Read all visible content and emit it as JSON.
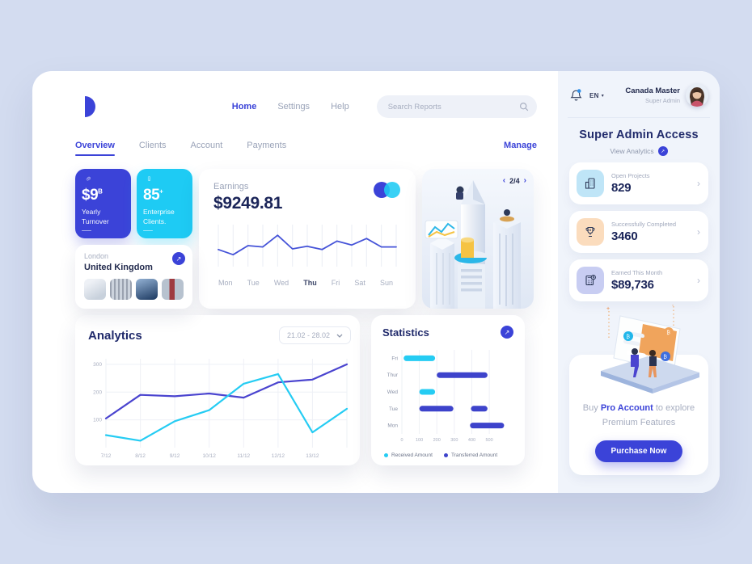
{
  "colors": {
    "primary": "#3b43d8",
    "cyan": "#1ecbf4",
    "navy": "#1b2559",
    "gray": "#9aa3b8",
    "bg": "#d3dcf0",
    "sidebar_bg": "#f0f4fb"
  },
  "nav": {
    "links": {
      "home": "Home",
      "settings": "Settings",
      "help": "Help"
    },
    "active": "Home",
    "search_placeholder": "Search Reports"
  },
  "tabs": {
    "items": [
      "Overview",
      "Clients",
      "Account",
      "Payments"
    ],
    "active": "Overview",
    "action_label": "Manage"
  },
  "kpis": [
    {
      "value": "$9",
      "suffix": "B",
      "label": "Yearly Turnover"
    },
    {
      "value": "85",
      "suffix": "+",
      "label": "Enterprise Clients."
    }
  ],
  "location": {
    "city": "London",
    "country": "United Kingdom"
  },
  "earnings": {
    "title": "Earnings",
    "amount": "$9249.81",
    "days": [
      "Mon",
      "Tue",
      "Wed",
      "Thu",
      "Fri",
      "Sat",
      "Sun"
    ],
    "active_day": "Thu"
  },
  "carousel": {
    "prev": "‹",
    "page_indicator": "2/4",
    "next": "›"
  },
  "analytics": {
    "title": "Analytics",
    "date_range": "21.02 - 28.02"
  },
  "statistics": {
    "title": "Statistics",
    "legend": [
      {
        "label": "Received Amount",
        "color": "#25ccf3"
      },
      {
        "label": "Transferred Amount",
        "color": "#3d43cb"
      }
    ]
  },
  "sidebar": {
    "language": "EN",
    "user": {
      "name": "Canada Master",
      "role": "Super Admin"
    },
    "heading": "Super Admin Access",
    "subheading": "View Analytics",
    "stats": [
      {
        "label": "Open Projects",
        "value": "829",
        "icon": "buildings-icon"
      },
      {
        "label": "Successfully Completed",
        "value": "3460",
        "icon": "trophy-icon"
      },
      {
        "label": "Earned This Month",
        "value": "$89,736",
        "icon": "calculator-icon"
      }
    ],
    "promo": {
      "prefix": "Buy ",
      "highlight": "Pro Account",
      "suffix": " to explore",
      "line2": "Premium Features",
      "button": "Purchase Now"
    }
  },
  "chart_data": [
    {
      "id": "earnings_sparkline",
      "type": "line",
      "title": "Earnings weekly trend",
      "x_labels": [
        "Mon",
        "Tue",
        "Wed",
        "Thu",
        "Fri",
        "Sat",
        "Sun"
      ],
      "values": [
        24,
        16,
        30,
        28,
        46,
        25,
        29,
        24,
        37,
        31,
        41,
        28,
        28
      ],
      "ylim": [
        0,
        60
      ],
      "color": "#4553d8",
      "grid": "vertical"
    },
    {
      "id": "analytics",
      "type": "line",
      "title": "Analytics",
      "x_labels": [
        "7/12",
        "8/12",
        "9/12",
        "10/12",
        "11/12",
        "12/12",
        "13/12",
        ""
      ],
      "y_ticks": [
        100,
        200,
        300
      ],
      "ylim": [
        0,
        320
      ],
      "grid": "both",
      "legend_position": "none",
      "series": [
        {
          "name": "primary",
          "color": "#4a44cf",
          "values": [
            105,
            190,
            185,
            195,
            180,
            235,
            245,
            300
          ]
        },
        {
          "name": "secondary",
          "color": "#25ccf3",
          "values": [
            45,
            25,
            95,
            135,
            230,
            265,
            55,
            140
          ]
        }
      ]
    },
    {
      "id": "statistics",
      "type": "bar",
      "title": "Statistics",
      "orientation": "horizontal-range",
      "categories": [
        "Fri",
        "Thur",
        "Wed",
        "Tue",
        "Mon"
      ],
      "x_ticks": [
        0,
        100,
        200,
        300,
        400,
        500
      ],
      "xlim": [
        0,
        620
      ],
      "bars": [
        {
          "cat": "Fri",
          "series": "Received Amount",
          "start": 10,
          "end": 190,
          "color": "#25ccf3"
        },
        {
          "cat": "Thur",
          "series": "Transferred Amount",
          "start": 200,
          "end": 490,
          "color": "#3d43cb"
        },
        {
          "cat": "Wed",
          "series": "Received Amount",
          "start": 100,
          "end": 190,
          "color": "#25ccf3"
        },
        {
          "cat": "Tue",
          "series": "Transferred Amount",
          "start": 100,
          "end": 295,
          "color": "#3d43cb"
        },
        {
          "cat": "Tue",
          "series": "Transferred Amount",
          "start": 395,
          "end": 490,
          "color": "#3d43cb"
        },
        {
          "cat": "Mon",
          "series": "Transferred Amount",
          "start": 390,
          "end": 585,
          "color": "#3d43cb"
        }
      ],
      "legend": [
        "Received Amount",
        "Transferred Amount"
      ]
    }
  ]
}
